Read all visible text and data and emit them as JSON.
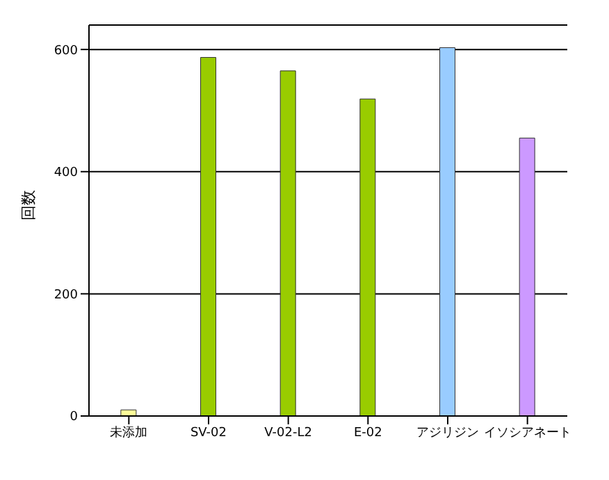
{
  "chart_data": {
    "type": "bar",
    "ylabel": "回数",
    "categories": [
      "未添加",
      "SV-02",
      "V-02-L2",
      "E-02",
      "アジリジン",
      "イソシアネート"
    ],
    "values": [
      10,
      587,
      565,
      519,
      603,
      455
    ],
    "colors": [
      "#ffff99",
      "#99cc00",
      "#99cc00",
      "#99cc00",
      "#99ccff",
      "#cc99ff"
    ],
    "ylim": [
      0,
      640
    ],
    "yticks": [
      0,
      200,
      400,
      600
    ],
    "grid": "y",
    "legend": false
  }
}
